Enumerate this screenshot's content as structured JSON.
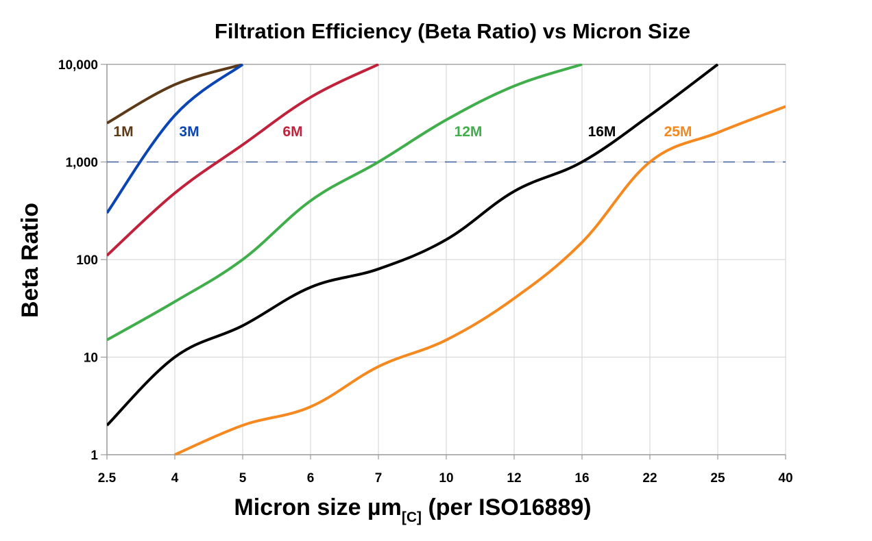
{
  "chart_data": {
    "type": "line",
    "title": "Filtration Efficiency (Beta Ratio) vs Micron Size",
    "xlabel_main": "Micron size µm",
    "xlabel_sub": "[C]",
    "xlabel_suffix": " (per ISO16889)",
    "ylabel": "Beta Ratio",
    "y_scale": "log",
    "ylim": [
      1,
      10000
    ],
    "grid": true,
    "categories": [
      "2.5",
      "4",
      "5",
      "6",
      "7",
      "10",
      "12",
      "16",
      "22",
      "25",
      "40"
    ],
    "y_ticks": [
      1,
      10,
      100,
      1000,
      10000
    ],
    "y_tick_labels": [
      "1",
      "10",
      "100",
      "1,000",
      "10,000"
    ],
    "reference_line": {
      "value": 1000,
      "style": "dashed",
      "color": "#3d5f9c"
    },
    "series": [
      {
        "name": "1M",
        "color": "#5c3a17",
        "values": [
          2500,
          6200,
          10000,
          null,
          null,
          null,
          null,
          null,
          null,
          null,
          null
        ]
      },
      {
        "name": "3M",
        "color": "#0a45b3",
        "values": [
          300,
          3000,
          10000,
          null,
          null,
          null,
          null,
          null,
          null,
          null,
          null
        ]
      },
      {
        "name": "6M",
        "color": "#c1213a",
        "values": [
          110,
          480,
          1500,
          4600,
          10000,
          null,
          null,
          null,
          null,
          null,
          null
        ]
      },
      {
        "name": "12M",
        "color": "#40ae4a",
        "values": [
          15,
          37,
          100,
          400,
          1000,
          2700,
          6000,
          10000,
          null,
          null,
          null
        ]
      },
      {
        "name": "16M",
        "color": "#000000",
        "values": [
          2,
          10,
          21,
          52,
          80,
          160,
          500,
          1000,
          3000,
          10000,
          null
        ]
      },
      {
        "name": "25M",
        "color": "#f5891f",
        "values": [
          null,
          1,
          2,
          3.1,
          8,
          15,
          40,
          150,
          1000,
          2000,
          3700
        ]
      }
    ]
  }
}
